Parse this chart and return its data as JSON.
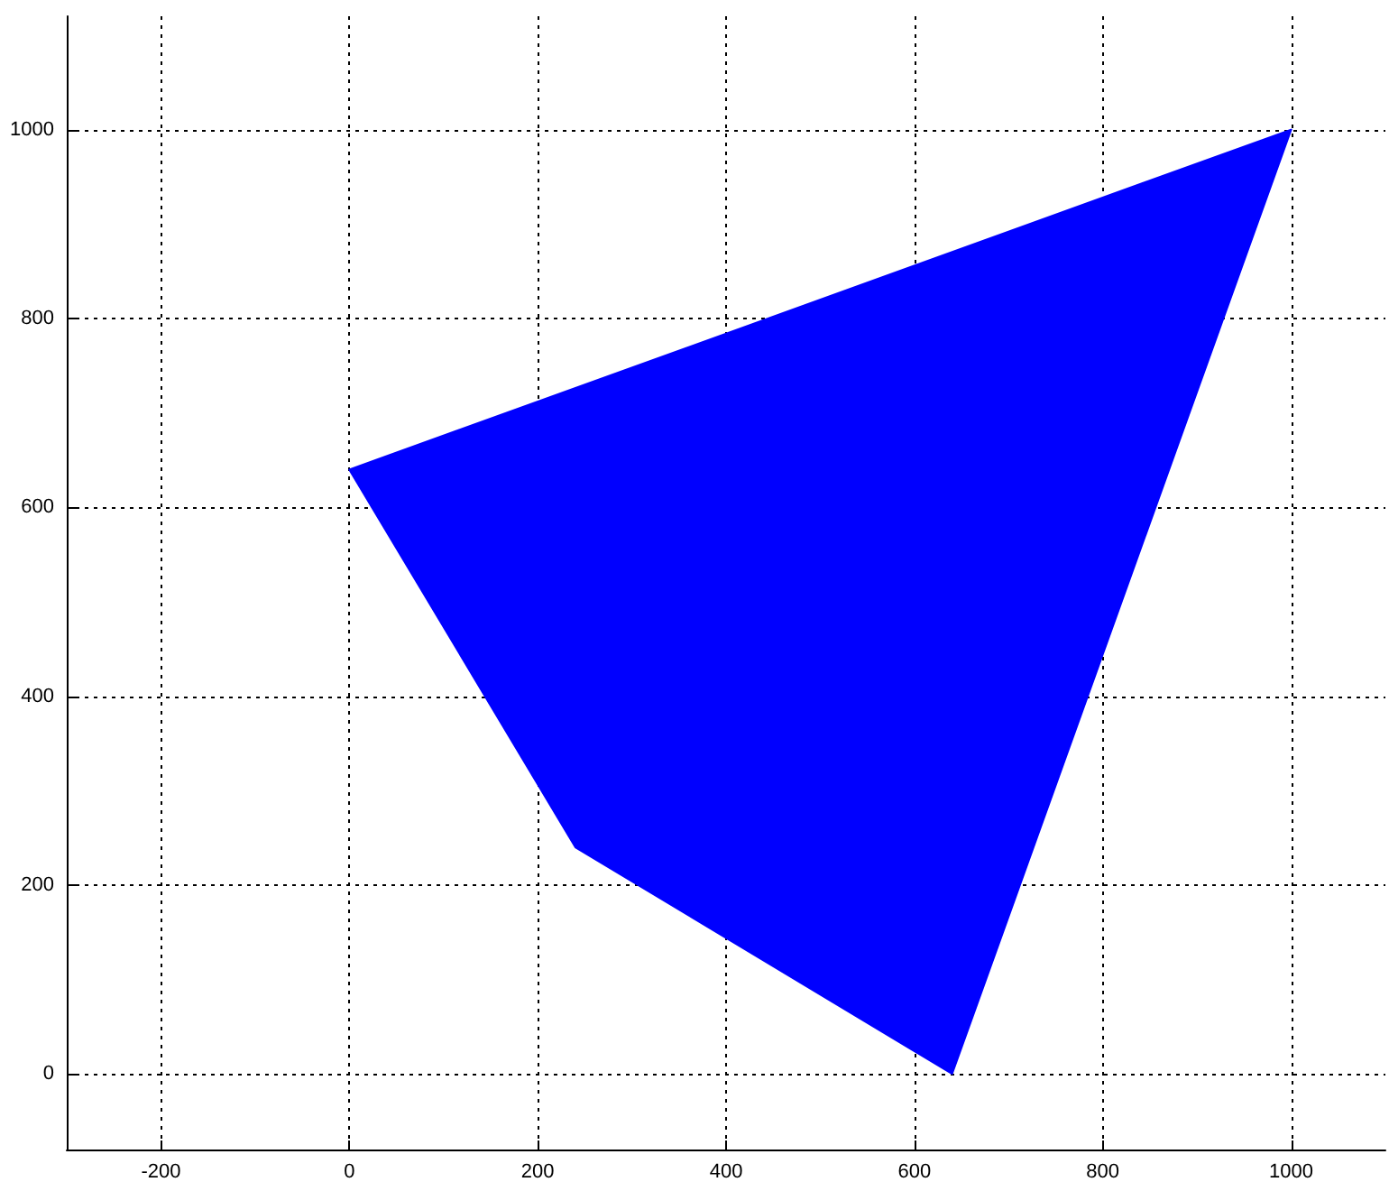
{
  "chart_data": {
    "type": "area",
    "x": [
      0,
      240,
      640,
      1000,
      0
    ],
    "values": [
      640,
      240,
      0,
      1000,
      640
    ],
    "color": "#0000ff",
    "xlim": [
      -300,
      1100
    ],
    "xticks": [
      -200,
      0,
      200,
      400,
      600,
      800,
      1000
    ],
    "ylim": [
      -80,
      1120
    ],
    "yticks": [
      0,
      200,
      400,
      600,
      800,
      1000
    ],
    "grid": true
  }
}
